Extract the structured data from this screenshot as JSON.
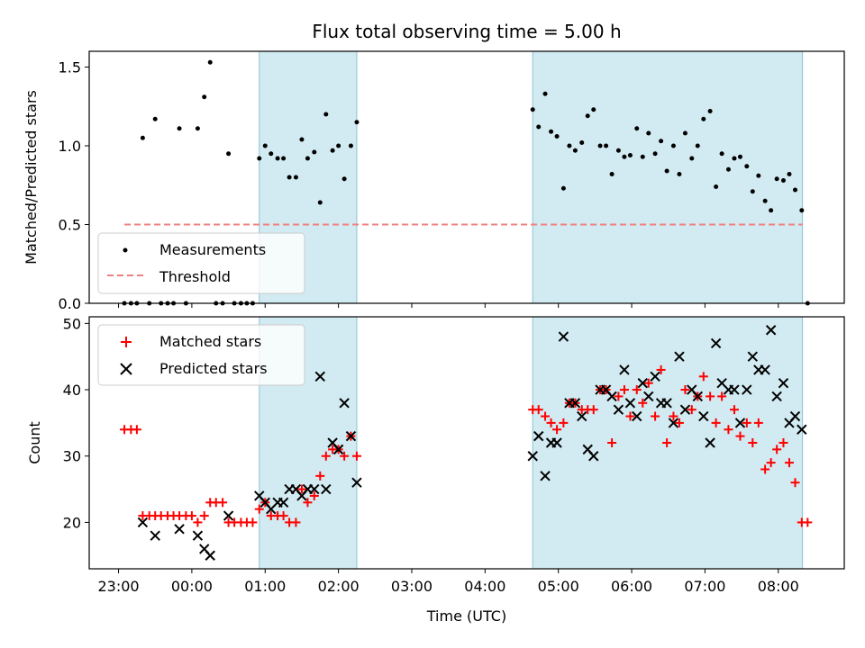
{
  "chart_data": [
    {
      "type": "scatter",
      "title": "Flux total observing time = 5.00 h",
      "xlabel": "",
      "ylabel": "Matched/Predicted stars",
      "ylim": [
        0,
        1.6
      ],
      "yticks": [
        "0.0",
        "0.5",
        "1.0",
        "1.5"
      ],
      "shaded_intervals_hours": [
        [
          0.92,
          2.25
        ],
        [
          4.65,
          8.33
        ]
      ],
      "threshold": {
        "name": "Threshold",
        "value": 0.5,
        "x_range": [
          -0.92,
          8.33
        ],
        "color": "#f08080"
      },
      "series": [
        {
          "name": "Measurements",
          "color": "#000000",
          "points": [
            [
              -0.92,
              0
            ],
            [
              -0.83,
              0
            ],
            [
              -0.75,
              0
            ],
            [
              -0.67,
              1.05
            ],
            [
              -0.58,
              0
            ],
            [
              -0.5,
              1.17
            ],
            [
              -0.42,
              0
            ],
            [
              -0.33,
              0
            ],
            [
              -0.25,
              0
            ],
            [
              -0.17,
              1.11
            ],
            [
              -0.08,
              0
            ],
            [
              0.08,
              1.11
            ],
            [
              0.17,
              1.31
            ],
            [
              0.25,
              1.53
            ],
            [
              0.33,
              0
            ],
            [
              0.42,
              0
            ],
            [
              0.5,
              0.95
            ],
            [
              0.58,
              0
            ],
            [
              0.67,
              0
            ],
            [
              0.75,
              0
            ],
            [
              0.83,
              0
            ],
            [
              0.92,
              0.92
            ],
            [
              1.0,
              1.0
            ],
            [
              1.08,
              0.95
            ],
            [
              1.17,
              0.92
            ],
            [
              1.25,
              0.92
            ],
            [
              1.33,
              0.8
            ],
            [
              1.42,
              0.8
            ],
            [
              1.5,
              1.04
            ],
            [
              1.58,
              0.92
            ],
            [
              1.67,
              0.96
            ],
            [
              1.75,
              0.64
            ],
            [
              1.83,
              1.2
            ],
            [
              1.92,
              0.97
            ],
            [
              2.0,
              1.0
            ],
            [
              2.08,
              0.79
            ],
            [
              2.17,
              1.0
            ],
            [
              2.25,
              1.15
            ],
            [
              4.65,
              1.23
            ],
            [
              4.73,
              1.12
            ],
            [
              4.82,
              1.33
            ],
            [
              4.9,
              1.09
            ],
            [
              4.98,
              1.06
            ],
            [
              5.07,
              0.73
            ],
            [
              5.15,
              1.0
            ],
            [
              5.23,
              0.97
            ],
            [
              5.32,
              1.02
            ],
            [
              5.4,
              1.19
            ],
            [
              5.48,
              1.23
            ],
            [
              5.57,
              1.0
            ],
            [
              5.65,
              1.0
            ],
            [
              5.73,
              0.82
            ],
            [
              5.82,
              0.97
            ],
            [
              5.9,
              0.93
            ],
            [
              5.98,
              0.94
            ],
            [
              6.07,
              1.11
            ],
            [
              6.15,
              0.93
            ],
            [
              6.23,
              1.08
            ],
            [
              6.32,
              0.95
            ],
            [
              6.4,
              1.03
            ],
            [
              6.48,
              0.84
            ],
            [
              6.57,
              1.0
            ],
            [
              6.65,
              0.82
            ],
            [
              6.73,
              1.08
            ],
            [
              6.82,
              0.92
            ],
            [
              6.9,
              1.0
            ],
            [
              6.98,
              1.17
            ],
            [
              7.07,
              1.22
            ],
            [
              7.15,
              0.74
            ],
            [
              7.23,
              0.95
            ],
            [
              7.32,
              0.85
            ],
            [
              7.4,
              0.92
            ],
            [
              7.48,
              0.93
            ],
            [
              7.57,
              0.87
            ],
            [
              7.65,
              0.71
            ],
            [
              7.73,
              0.81
            ],
            [
              7.82,
              0.65
            ],
            [
              7.9,
              0.59
            ],
            [
              7.98,
              0.79
            ],
            [
              8.07,
              0.78
            ],
            [
              8.15,
              0.82
            ],
            [
              8.23,
              0.72
            ],
            [
              8.32,
              0.59
            ],
            [
              8.4,
              0
            ]
          ]
        }
      ],
      "legend": {
        "placement": "lower-left",
        "entries": [
          "Measurements",
          "Threshold"
        ]
      }
    },
    {
      "type": "scatter",
      "title": "",
      "xlabel": "Time (UTC)",
      "ylabel": "Count",
      "ylim": [
        13,
        51
      ],
      "yticks": [
        "20",
        "30",
        "40",
        "50"
      ],
      "x_ticks": [
        "23:00",
        "00:00",
        "01:00",
        "02:00",
        "03:00",
        "04:00",
        "05:00",
        "06:00",
        "07:00",
        "08:00"
      ],
      "xlim_hours": [
        -1.4,
        8.9
      ],
      "shaded_intervals_hours": [
        [
          0.92,
          2.25
        ],
        [
          4.65,
          8.33
        ]
      ],
      "series": [
        {
          "name": "Matched stars",
          "marker": "+",
          "color": "#ff0000",
          "points": [
            [
              -0.92,
              34
            ],
            [
              -0.83,
              34
            ],
            [
              -0.75,
              34
            ],
            [
              -0.67,
              21
            ],
            [
              -0.58,
              21
            ],
            [
              -0.5,
              21
            ],
            [
              -0.42,
              21
            ],
            [
              -0.33,
              21
            ],
            [
              -0.25,
              21
            ],
            [
              -0.17,
              21
            ],
            [
              -0.08,
              21
            ],
            [
              0.0,
              21
            ],
            [
              0.08,
              20
            ],
            [
              0.17,
              21
            ],
            [
              0.25,
              23
            ],
            [
              0.33,
              23
            ],
            [
              0.42,
              23
            ],
            [
              0.5,
              20
            ],
            [
              0.58,
              20
            ],
            [
              0.67,
              20
            ],
            [
              0.75,
              20
            ],
            [
              0.83,
              20
            ],
            [
              0.92,
              22
            ],
            [
              1.0,
              23
            ],
            [
              1.08,
              21
            ],
            [
              1.17,
              21
            ],
            [
              1.25,
              21
            ],
            [
              1.33,
              20
            ],
            [
              1.42,
              20
            ],
            [
              1.5,
              25
            ],
            [
              1.58,
              23
            ],
            [
              1.67,
              24
            ],
            [
              1.75,
              27
            ],
            [
              1.83,
              30
            ],
            [
              1.92,
              31
            ],
            [
              2.0,
              31
            ],
            [
              2.08,
              30
            ],
            [
              2.17,
              33
            ],
            [
              2.25,
              30
            ],
            [
              4.65,
              37
            ],
            [
              4.73,
              37
            ],
            [
              4.82,
              36
            ],
            [
              4.9,
              35
            ],
            [
              4.98,
              34
            ],
            [
              5.07,
              35
            ],
            [
              5.15,
              38
            ],
            [
              5.23,
              38
            ],
            [
              5.32,
              37
            ],
            [
              5.4,
              37
            ],
            [
              5.48,
              37
            ],
            [
              5.57,
              40
            ],
            [
              5.65,
              40
            ],
            [
              5.73,
              32
            ],
            [
              5.82,
              39
            ],
            [
              5.9,
              40
            ],
            [
              5.98,
              36
            ],
            [
              6.07,
              40
            ],
            [
              6.15,
              38
            ],
            [
              6.23,
              41
            ],
            [
              6.32,
              36
            ],
            [
              6.4,
              43
            ],
            [
              6.48,
              32
            ],
            [
              6.57,
              36
            ],
            [
              6.65,
              35
            ],
            [
              6.73,
              40
            ],
            [
              6.82,
              37
            ],
            [
              6.9,
              39
            ],
            [
              6.98,
              42
            ],
            [
              7.07,
              39
            ],
            [
              7.15,
              35
            ],
            [
              7.23,
              39
            ],
            [
              7.32,
              34
            ],
            [
              7.4,
              37
            ],
            [
              7.48,
              33
            ],
            [
              7.57,
              35
            ],
            [
              7.65,
              32
            ],
            [
              7.73,
              35
            ],
            [
              7.82,
              28
            ],
            [
              7.9,
              29
            ],
            [
              7.98,
              31
            ],
            [
              8.07,
              32
            ],
            [
              8.15,
              29
            ],
            [
              8.23,
              26
            ],
            [
              8.32,
              20
            ],
            [
              8.4,
              20
            ]
          ]
        },
        {
          "name": "Predicted stars",
          "marker": "x",
          "color": "#000000",
          "points": [
            [
              -0.67,
              20
            ],
            [
              -0.5,
              18
            ],
            [
              -0.17,
              19
            ],
            [
              0.08,
              18
            ],
            [
              0.17,
              16
            ],
            [
              0.25,
              15
            ],
            [
              0.5,
              21
            ],
            [
              0.92,
              24
            ],
            [
              1.0,
              23
            ],
            [
              1.08,
              22
            ],
            [
              1.17,
              23
            ],
            [
              1.25,
              23
            ],
            [
              1.33,
              25
            ],
            [
              1.42,
              25
            ],
            [
              1.5,
              24
            ],
            [
              1.58,
              25
            ],
            [
              1.67,
              25
            ],
            [
              1.75,
              42
            ],
            [
              1.83,
              25
            ],
            [
              1.92,
              32
            ],
            [
              2.0,
              31
            ],
            [
              2.08,
              38
            ],
            [
              2.17,
              33
            ],
            [
              2.25,
              26
            ],
            [
              4.65,
              30
            ],
            [
              4.73,
              33
            ],
            [
              4.82,
              27
            ],
            [
              4.9,
              32
            ],
            [
              4.98,
              32
            ],
            [
              5.07,
              48
            ],
            [
              5.15,
              38
            ],
            [
              5.23,
              38
            ],
            [
              5.32,
              36
            ],
            [
              5.4,
              31
            ],
            [
              5.48,
              30
            ],
            [
              5.57,
              40
            ],
            [
              5.65,
              40
            ],
            [
              5.73,
              39
            ],
            [
              5.82,
              37
            ],
            [
              5.9,
              43
            ],
            [
              5.98,
              38
            ],
            [
              6.07,
              36
            ],
            [
              6.15,
              41
            ],
            [
              6.23,
              39
            ],
            [
              6.32,
              42
            ],
            [
              6.4,
              38
            ],
            [
              6.48,
              38
            ],
            [
              6.57,
              35
            ],
            [
              6.65,
              45
            ],
            [
              6.73,
              37
            ],
            [
              6.82,
              40
            ],
            [
              6.9,
              39
            ],
            [
              6.98,
              36
            ],
            [
              7.07,
              32
            ],
            [
              7.15,
              47
            ],
            [
              7.23,
              41
            ],
            [
              7.32,
              40
            ],
            [
              7.4,
              40
            ],
            [
              7.48,
              35
            ],
            [
              7.57,
              40
            ],
            [
              7.65,
              45
            ],
            [
              7.73,
              43
            ],
            [
              7.82,
              43
            ],
            [
              7.9,
              49
            ],
            [
              7.98,
              39
            ],
            [
              8.07,
              41
            ],
            [
              8.15,
              35
            ],
            [
              8.23,
              36
            ],
            [
              8.32,
              34
            ]
          ]
        }
      ],
      "legend": {
        "placement": "top-left",
        "entries": [
          "Matched stars",
          "Predicted stars"
        ]
      }
    }
  ],
  "colors": {
    "shade": "#add8e6",
    "threshold": "#f08080",
    "matched": "#ff0000",
    "predicted": "#000000",
    "measurements": "#000000"
  }
}
